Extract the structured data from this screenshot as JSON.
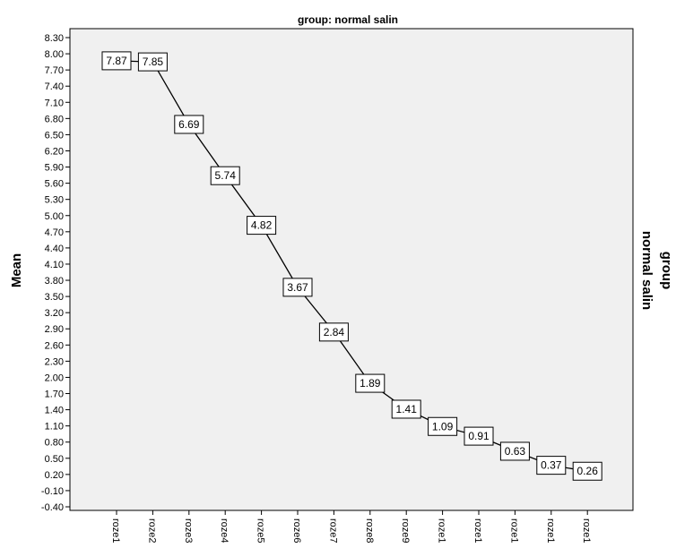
{
  "chart_data": {
    "type": "line",
    "title": "group: normal salin",
    "xlabel": "",
    "ylabel": "Mean",
    "legend_title": "group",
    "legend_value": "normal salin",
    "ylim": [
      -0.4,
      8.3
    ],
    "yticks": [
      8.3,
      8.0,
      7.7,
      7.4,
      7.1,
      6.8,
      6.5,
      6.2,
      5.9,
      5.6,
      5.3,
      5.0,
      4.7,
      4.4,
      4.1,
      3.8,
      3.5,
      3.2,
      2.9,
      2.6,
      2.3,
      2.0,
      1.7,
      1.4,
      1.1,
      0.8,
      0.5,
      0.2,
      -0.1,
      -0.4
    ],
    "ytick_labels": [
      "8.30",
      "8.00",
      "7.70",
      "7.40",
      "7.10",
      "6.80",
      "6.50",
      "6.20",
      "5.90",
      "5.60",
      "5.30",
      "5.00",
      "4.70",
      "4.40",
      "4.10",
      "3.80",
      "3.50",
      "3.20",
      "2.90",
      "2.60",
      "2.30",
      "2.00",
      "1.70",
      "1.40",
      "1.10",
      "0.80",
      "0.50",
      "0.20",
      "-0.10",
      "-0.40"
    ],
    "categories": [
      "roze1",
      "roze2",
      "roze3",
      "roze4",
      "roze5",
      "roze6",
      "roze7",
      "roze8",
      "roze9",
      "roze1",
      "roze1",
      "roze1",
      "roze1",
      "roze1"
    ],
    "values": [
      7.87,
      7.85,
      6.69,
      5.74,
      4.82,
      3.67,
      2.84,
      1.89,
      1.41,
      1.09,
      0.91,
      0.63,
      0.37,
      0.26
    ],
    "data_labels": [
      "7.87",
      "7.85",
      "6.69",
      "5.74",
      "4.82",
      "3.67",
      "2.84",
      "1.89",
      "1.41",
      "1.09",
      "0.91",
      "0.63",
      "0.37",
      "0.26"
    ],
    "grid": false,
    "colors": {
      "plot_background": "#f0f0f0",
      "line": "#000000",
      "label_box": "#ffffff"
    }
  }
}
